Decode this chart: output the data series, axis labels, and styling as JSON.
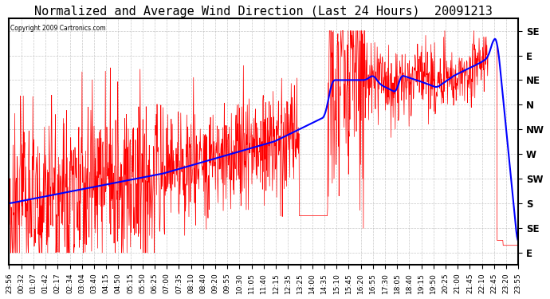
{
  "title": "Normalized and Average Wind Direction (Last 24 Hours)  20091213",
  "copyright": "Copyright 2009 Cartronics.com",
  "background_color": "#ffffff",
  "plot_bg_color": "#ffffff",
  "grid_color": "#bbbbbb",
  "ytick_labels": [
    "SE",
    "E",
    "NE",
    "N",
    "NW",
    "W",
    "SW",
    "S",
    "SE",
    "E"
  ],
  "ytick_values": [
    0,
    1,
    2,
    3,
    4,
    5,
    6,
    7,
    8,
    9
  ],
  "ylim": [
    -0.5,
    9.5
  ],
  "xtick_labels": [
    "23:56",
    "00:32",
    "01:07",
    "01:42",
    "02:17",
    "02:34",
    "03:04",
    "03:40",
    "04:15",
    "04:50",
    "05:15",
    "05:50",
    "06:25",
    "07:00",
    "07:35",
    "08:10",
    "08:40",
    "09:20",
    "09:55",
    "10:30",
    "11:05",
    "11:40",
    "12:15",
    "12:35",
    "13:25",
    "14:00",
    "14:35",
    "15:10",
    "15:45",
    "16:20",
    "16:55",
    "17:30",
    "18:05",
    "18:40",
    "19:15",
    "19:50",
    "20:25",
    "21:00",
    "21:45",
    "22:10",
    "22:45",
    "23:20",
    "23:55"
  ],
  "red_line_color": "#ff0000",
  "blue_line_color": "#0000ff",
  "title_fontsize": 11,
  "tick_fontsize": 6.5,
  "ylabel_fontsize": 8.5,
  "figsize": [
    6.9,
    3.75
  ],
  "dpi": 100
}
